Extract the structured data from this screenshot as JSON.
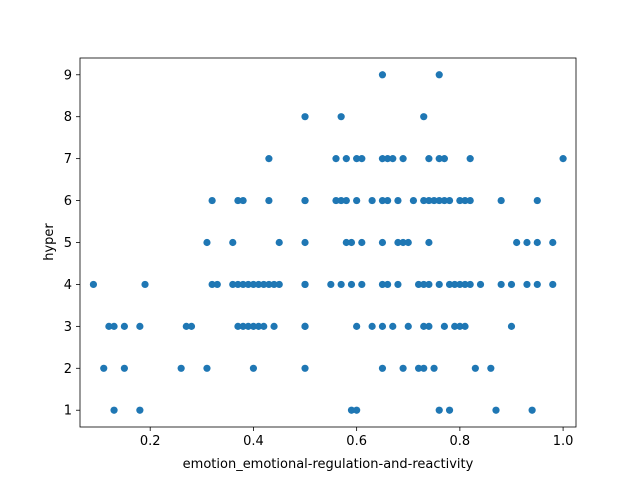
{
  "chart_data": {
    "type": "scatter",
    "title": "",
    "xlabel": "emotion_emotional-regulation-and-reactivity",
    "ylabel": "hyper",
    "xlim": [
      0.064,
      1.025
    ],
    "ylim": [
      0.6,
      9.4
    ],
    "xticks": [
      0.2,
      0.4,
      0.6,
      0.8,
      1.0
    ],
    "xtick_labels": [
      "0.2",
      "0.4",
      "0.6",
      "0.8",
      "1.0"
    ],
    "yticks": [
      1,
      2,
      3,
      4,
      5,
      6,
      7,
      8,
      9
    ],
    "ytick_labels": [
      "1",
      "2",
      "3",
      "4",
      "5",
      "6",
      "7",
      "8",
      "9"
    ],
    "grid": false,
    "marker_color": "#1f77b4",
    "series": [
      {
        "points": [
          [
            0.09,
            4
          ],
          [
            0.11,
            2
          ],
          [
            0.12,
            3
          ],
          [
            0.13,
            1
          ],
          [
            0.13,
            3
          ],
          [
            0.15,
            3
          ],
          [
            0.15,
            2
          ],
          [
            0.18,
            1
          ],
          [
            0.18,
            3
          ],
          [
            0.19,
            4
          ],
          [
            0.26,
            2
          ],
          [
            0.27,
            3
          ],
          [
            0.28,
            3
          ],
          [
            0.31,
            5
          ],
          [
            0.31,
            2
          ],
          [
            0.32,
            6
          ],
          [
            0.32,
            4
          ],
          [
            0.33,
            4
          ],
          [
            0.36,
            5
          ],
          [
            0.36,
            4
          ],
          [
            0.37,
            6
          ],
          [
            0.37,
            3
          ],
          [
            0.37,
            4
          ],
          [
            0.38,
            6
          ],
          [
            0.38,
            4
          ],
          [
            0.38,
            3
          ],
          [
            0.39,
            3
          ],
          [
            0.39,
            4
          ],
          [
            0.4,
            4
          ],
          [
            0.4,
            3
          ],
          [
            0.4,
            2
          ],
          [
            0.41,
            4
          ],
          [
            0.41,
            3
          ],
          [
            0.42,
            4
          ],
          [
            0.42,
            3
          ],
          [
            0.43,
            4
          ],
          [
            0.43,
            6
          ],
          [
            0.43,
            7
          ],
          [
            0.44,
            3
          ],
          [
            0.44,
            4
          ],
          [
            0.45,
            4
          ],
          [
            0.45,
            5
          ],
          [
            0.5,
            8
          ],
          [
            0.5,
            6
          ],
          [
            0.5,
            5
          ],
          [
            0.5,
            4
          ],
          [
            0.5,
            3
          ],
          [
            0.5,
            6
          ],
          [
            0.5,
            2
          ],
          [
            0.5,
            4
          ],
          [
            0.5,
            3
          ],
          [
            0.55,
            4
          ],
          [
            0.56,
            7
          ],
          [
            0.56,
            6
          ],
          [
            0.57,
            8
          ],
          [
            0.57,
            6
          ],
          [
            0.57,
            4
          ],
          [
            0.58,
            6
          ],
          [
            0.58,
            7
          ],
          [
            0.58,
            5
          ],
          [
            0.59,
            5
          ],
          [
            0.59,
            1
          ],
          [
            0.59,
            4
          ],
          [
            0.6,
            7
          ],
          [
            0.6,
            3
          ],
          [
            0.6,
            1
          ],
          [
            0.6,
            6
          ],
          [
            0.61,
            7
          ],
          [
            0.61,
            5
          ],
          [
            0.61,
            4
          ],
          [
            0.63,
            6
          ],
          [
            0.63,
            3
          ],
          [
            0.65,
            9
          ],
          [
            0.65,
            7
          ],
          [
            0.65,
            6
          ],
          [
            0.65,
            5
          ],
          [
            0.65,
            4
          ],
          [
            0.65,
            3
          ],
          [
            0.65,
            2
          ],
          [
            0.66,
            7
          ],
          [
            0.66,
            6
          ],
          [
            0.66,
            4
          ],
          [
            0.67,
            7
          ],
          [
            0.67,
            3
          ],
          [
            0.68,
            5
          ],
          [
            0.68,
            6
          ],
          [
            0.68,
            4
          ],
          [
            0.69,
            7
          ],
          [
            0.69,
            5
          ],
          [
            0.69,
            2
          ],
          [
            0.7,
            5
          ],
          [
            0.7,
            3
          ],
          [
            0.71,
            6
          ],
          [
            0.72,
            4
          ],
          [
            0.72,
            2
          ],
          [
            0.73,
            8
          ],
          [
            0.73,
            6
          ],
          [
            0.73,
            4
          ],
          [
            0.73,
            3
          ],
          [
            0.73,
            2
          ],
          [
            0.74,
            7
          ],
          [
            0.74,
            6
          ],
          [
            0.74,
            5
          ],
          [
            0.74,
            4
          ],
          [
            0.74,
            3
          ],
          [
            0.75,
            6
          ],
          [
            0.75,
            2
          ],
          [
            0.76,
            9
          ],
          [
            0.76,
            7
          ],
          [
            0.76,
            6
          ],
          [
            0.76,
            4
          ],
          [
            0.76,
            1
          ],
          [
            0.77,
            7
          ],
          [
            0.77,
            6
          ],
          [
            0.77,
            3
          ],
          [
            0.78,
            6
          ],
          [
            0.78,
            4
          ],
          [
            0.78,
            1
          ],
          [
            0.79,
            4
          ],
          [
            0.79,
            3
          ],
          [
            0.8,
            6
          ],
          [
            0.8,
            4
          ],
          [
            0.8,
            3
          ],
          [
            0.81,
            4
          ],
          [
            0.81,
            6
          ],
          [
            0.81,
            3
          ],
          [
            0.82,
            7
          ],
          [
            0.82,
            6
          ],
          [
            0.82,
            4
          ],
          [
            0.83,
            2
          ],
          [
            0.84,
            4
          ],
          [
            0.86,
            2
          ],
          [
            0.87,
            1
          ],
          [
            0.88,
            6
          ],
          [
            0.88,
            4
          ],
          [
            0.9,
            3
          ],
          [
            0.9,
            4
          ],
          [
            0.91,
            5
          ],
          [
            0.93,
            5
          ],
          [
            0.93,
            4
          ],
          [
            0.94,
            1
          ],
          [
            0.95,
            6
          ],
          [
            0.95,
            5
          ],
          [
            0.95,
            4
          ],
          [
            0.98,
            5
          ],
          [
            0.98,
            4
          ],
          [
            1.0,
            7
          ]
        ]
      }
    ]
  }
}
